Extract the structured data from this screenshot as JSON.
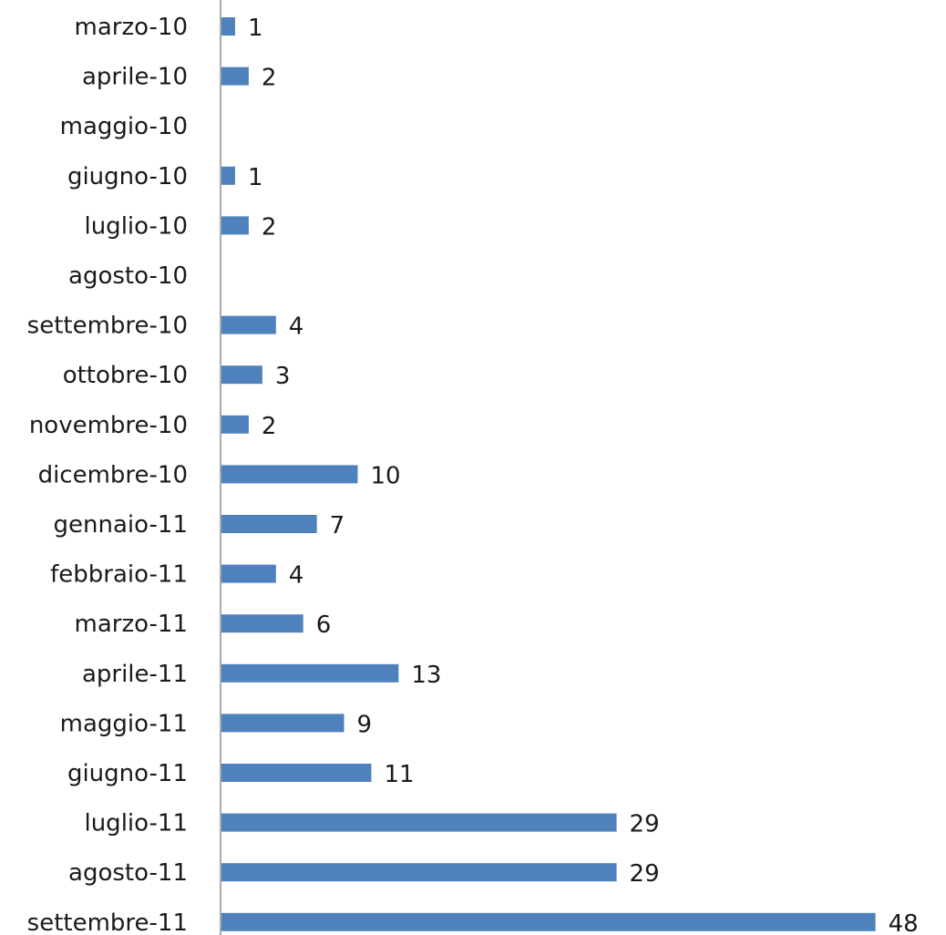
{
  "chart_data": {
    "type": "bar",
    "orientation": "horizontal",
    "categories": [
      "marzo-10",
      "aprile-10",
      "maggio-10",
      "giugno-10",
      "luglio-10",
      "agosto-10",
      "settembre-10",
      "ottobre-10",
      "novembre-10",
      "dicembre-10",
      "gennaio-11",
      "febbraio-11",
      "marzo-11",
      "aprile-11",
      "maggio-11",
      "giugno-11",
      "luglio-11",
      "agosto-11",
      "settembre-11"
    ],
    "values": [
      1,
      2,
      0,
      1,
      2,
      0,
      4,
      3,
      2,
      10,
      7,
      4,
      6,
      13,
      9,
      11,
      29,
      29,
      48
    ],
    "value_labels": [
      "1",
      "2",
      "",
      "1",
      "2",
      "",
      "4",
      "3",
      "2",
      "10",
      "7",
      "4",
      "6",
      "13",
      "9",
      "11",
      "29",
      "29",
      "48"
    ],
    "xlim": [
      0,
      50
    ],
    "grid": false,
    "legend": "none",
    "bar_color": "#4F81BD",
    "axis_color": "#8c8c8c"
  }
}
